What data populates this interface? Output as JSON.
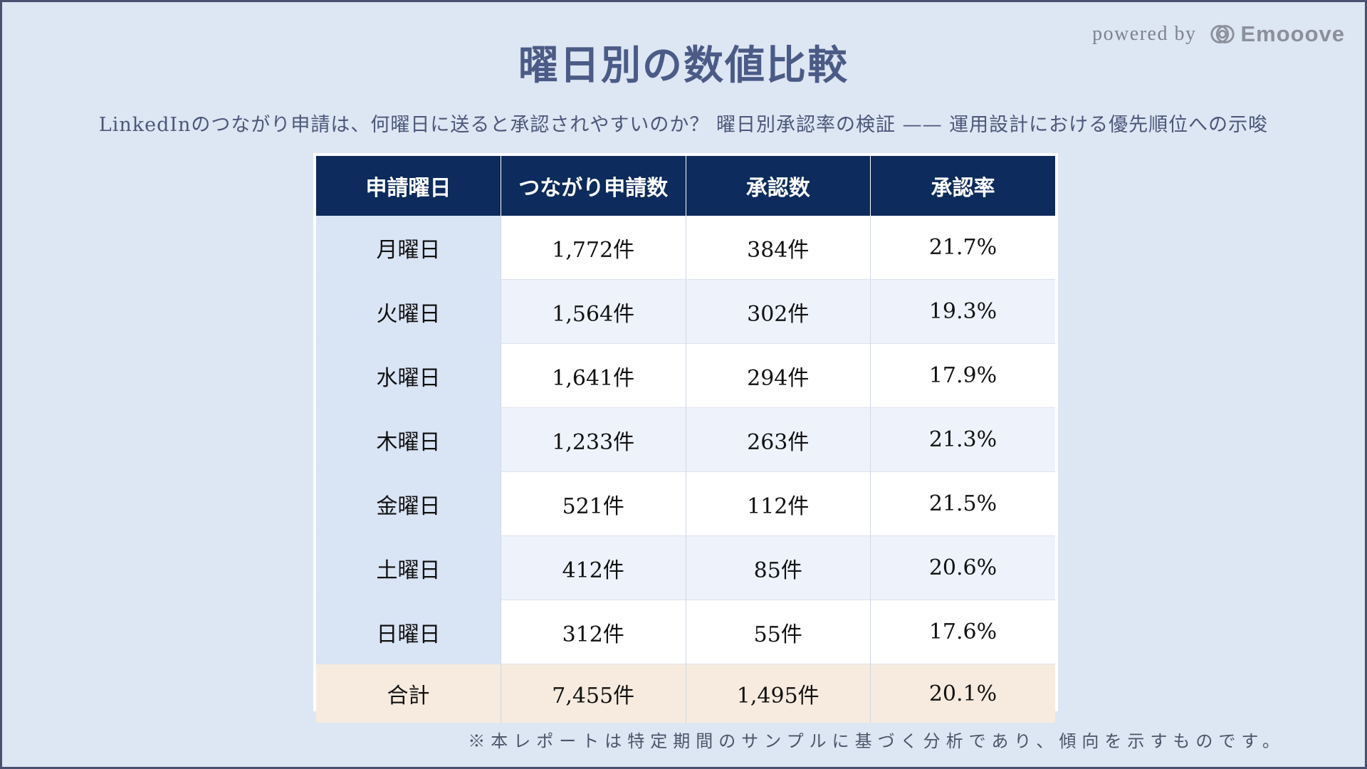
{
  "brand": {
    "powered_by": "powered by",
    "name": "Emooove",
    "logo_icon": "emooove-logo-icon"
  },
  "title": "曜日別の数値比較",
  "subtitle": "LinkedInのつながり申請は、何曜日に送ると承認されやすいのか？ 曜日別承認率の検証 —— 運用設計における優先順位への示唆",
  "table": {
    "headers": [
      "申請曜日",
      "つながり申請数",
      "承認数",
      "承認率"
    ],
    "rows": [
      [
        "月曜日",
        "1,772件",
        "384件",
        "21.7%"
      ],
      [
        "火曜日",
        "1,564件",
        "302件",
        "19.3%"
      ],
      [
        "水曜日",
        "1,641件",
        "294件",
        "17.9%"
      ],
      [
        "木曜日",
        "1,233件",
        "263件",
        "21.3%"
      ],
      [
        "金曜日",
        "521件",
        "112件",
        "21.5%"
      ],
      [
        "土曜日",
        "412件",
        "85件",
        "20.6%"
      ],
      [
        "日曜日",
        "312件",
        "55件",
        "17.6%"
      ]
    ],
    "total": [
      "合計",
      "7,455件",
      "1,495件",
      "20.1%"
    ]
  },
  "footnote": "※本レポートは特定期間のサンプルに基づく分析であり、傾向を示すものです。",
  "colors": {
    "background": "#dde6f3",
    "header": "#0d2b5c",
    "title": "#4b5b86",
    "total_row": "#f6ebde",
    "day_column": "#d9e4f5"
  }
}
